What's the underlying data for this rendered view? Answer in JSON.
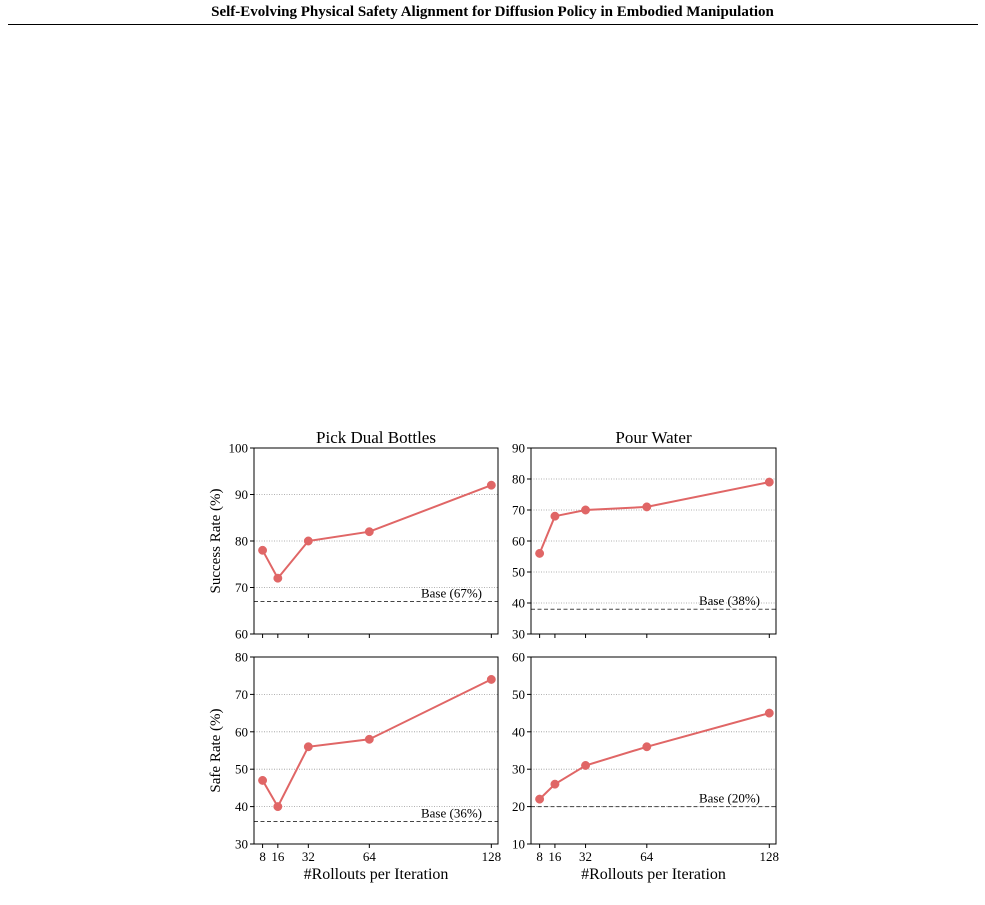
{
  "header": {
    "title": "Self-Evolving Physical Safety Alignment for Diffusion Policy in Embodied Manipulation"
  },
  "colors": {
    "series": "#e06666",
    "baseline": "#444444",
    "grid": "#999999"
  },
  "chart_data": [
    {
      "type": "line",
      "title": "Pick Dual Bottles",
      "ylabel": "Success Rate (%)",
      "xlabel": "",
      "x": [
        8,
        16,
        32,
        64,
        128
      ],
      "y": [
        78,
        72,
        80,
        82,
        92
      ],
      "ylim": [
        60,
        100
      ],
      "yticks": [
        60,
        70,
        80,
        90,
        100
      ],
      "grid": "horizontal dotted",
      "baseline": {
        "value": 67,
        "label": "Base (67%)"
      }
    },
    {
      "type": "line",
      "title": "Pour Water",
      "ylabel": "",
      "xlabel": "",
      "x": [
        8,
        16,
        32,
        64,
        128
      ],
      "y": [
        56,
        68,
        70,
        71,
        79
      ],
      "ylim": [
        30,
        90
      ],
      "yticks": [
        30,
        40,
        50,
        60,
        70,
        80,
        90
      ],
      "grid": "horizontal dotted",
      "baseline": {
        "value": 38,
        "label": "Base (38%)"
      }
    },
    {
      "type": "line",
      "title": "",
      "ylabel": "Safe Rate (%)",
      "xlabel": "#Rollouts per Iteration",
      "x": [
        8,
        16,
        32,
        64,
        128
      ],
      "y": [
        47,
        40,
        56,
        58,
        74
      ],
      "ylim": [
        30,
        80
      ],
      "yticks": [
        30,
        40,
        50,
        60,
        70,
        80
      ],
      "xticks": [
        "8",
        "16",
        "32",
        "64",
        "128"
      ],
      "grid": "horizontal dotted",
      "baseline": {
        "value": 36,
        "label": "Base (36%)"
      }
    },
    {
      "type": "line",
      "title": "",
      "ylabel": "",
      "xlabel": "#Rollouts per Iteration",
      "x": [
        8,
        16,
        32,
        64,
        128
      ],
      "y": [
        22,
        26,
        31,
        36,
        45
      ],
      "ylim": [
        10,
        60
      ],
      "yticks": [
        10,
        20,
        30,
        40,
        50,
        60
      ],
      "xticks": [
        "8",
        "16",
        "32",
        "64",
        "128"
      ],
      "grid": "horizontal dotted",
      "baseline": {
        "value": 20,
        "label": "Base (20%)"
      }
    }
  ]
}
